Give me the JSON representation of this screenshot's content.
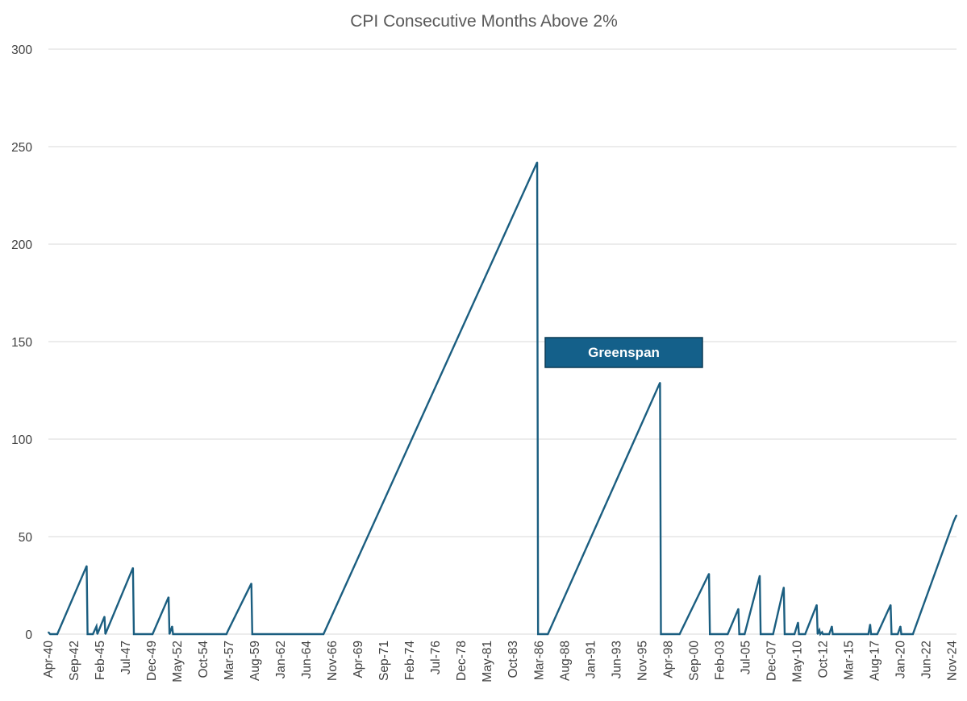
{
  "chart_data": {
    "type": "line",
    "title": "CPI Consecutive Months Above 2%",
    "xlabel": "",
    "ylabel": "",
    "ylim": [
      0,
      300
    ],
    "yticks": [
      0,
      50,
      100,
      150,
      200,
      250,
      300
    ],
    "x_start": "Apr-40",
    "x_end": "Apr-25",
    "x_ticks": [
      "Apr-40",
      "Sep-42",
      "Feb-45",
      "Jul-47",
      "Dec-49",
      "May-52",
      "Oct-54",
      "Mar-57",
      "Aug-59",
      "Jan-62",
      "Jun-64",
      "Nov-66",
      "Apr-69",
      "Sep-71",
      "Feb-74",
      "Jul-76",
      "Dec-78",
      "May-81",
      "Oct-83",
      "Mar-86",
      "Aug-88",
      "Jan-91",
      "Jun-93",
      "Nov-95",
      "Apr-98",
      "Sep-00",
      "Feb-03",
      "Jul-05",
      "Dec-07",
      "May-10",
      "Oct-12",
      "Mar-15",
      "Aug-17",
      "Jan-20",
      "Jun-22",
      "Nov-24"
    ],
    "grid": true,
    "legend": "none",
    "series": [
      {
        "color": "#1b5e80",
        "points": [
          [
            "Apr-40",
            1
          ],
          [
            "Jun-40",
            0
          ],
          [
            "Feb-41",
            0
          ],
          [
            "Nov-43",
            35
          ],
          [
            "Dec-43",
            0
          ],
          [
            "Jun-44",
            0
          ],
          [
            "Oct-44",
            4
          ],
          [
            "Nov-44",
            0
          ],
          [
            "Jul-45",
            9
          ],
          [
            "Aug-45",
            0
          ],
          [
            "Mar-48",
            34
          ],
          [
            "Apr-48",
            0
          ],
          [
            "Jan-50",
            0
          ],
          [
            "Jul-51",
            19
          ],
          [
            "Aug-51",
            0
          ],
          [
            "Nov-51",
            4
          ],
          [
            "Dec-51",
            0
          ],
          [
            "Dec-56",
            0
          ],
          [
            "Feb-57",
            2
          ],
          [
            "Apr-59",
            26
          ],
          [
            "May-59",
            0
          ],
          [
            "Jan-66",
            0
          ],
          [
            "Jan-86",
            242
          ],
          [
            "Feb-86",
            0
          ],
          [
            "Jan-87",
            0
          ],
          [
            "Jul-97",
            129
          ],
          [
            "Aug-97",
            0
          ],
          [
            "May-99",
            0
          ],
          [
            "Feb-02",
            31
          ],
          [
            "Mar-02",
            0
          ],
          [
            "Nov-03",
            0
          ],
          [
            "Nov-04",
            13
          ],
          [
            "Dec-04",
            0
          ],
          [
            "Jun-05",
            0
          ],
          [
            "Nov-06",
            30
          ],
          [
            "Dec-06",
            0
          ],
          [
            "Feb-08",
            0
          ],
          [
            "Feb-09",
            24
          ],
          [
            "Mar-09",
            0
          ],
          [
            "Feb-10",
            0
          ],
          [
            "Jun-10",
            6
          ],
          [
            "Jul-10",
            0
          ],
          [
            "Feb-11",
            0
          ],
          [
            "Mar-12",
            15
          ],
          [
            "Apr-12",
            0
          ],
          [
            "Jun-12",
            2
          ],
          [
            "Jul-12",
            0
          ],
          [
            "Sep-12",
            1
          ],
          [
            "Oct-12",
            0
          ],
          [
            "May-13",
            0
          ],
          [
            "Aug-13",
            4
          ],
          [
            "Sep-13",
            0
          ],
          [
            "Jan-17",
            0
          ],
          [
            "Mar-17",
            5
          ],
          [
            "Apr-17",
            0
          ],
          [
            "Nov-17",
            0
          ],
          [
            "Feb-19",
            15
          ],
          [
            "Mar-19",
            0
          ],
          [
            "Oct-19",
            0
          ],
          [
            "Jan-20",
            4
          ],
          [
            "Feb-20",
            0
          ],
          [
            "Mar-21",
            0
          ],
          [
            "Jan-25",
            58
          ],
          [
            "Apr-25",
            61
          ]
        ]
      }
    ],
    "annotations": [
      {
        "text": "Greenspan",
        "color": "#14608a",
        "border": "#0b3a55"
      }
    ]
  }
}
